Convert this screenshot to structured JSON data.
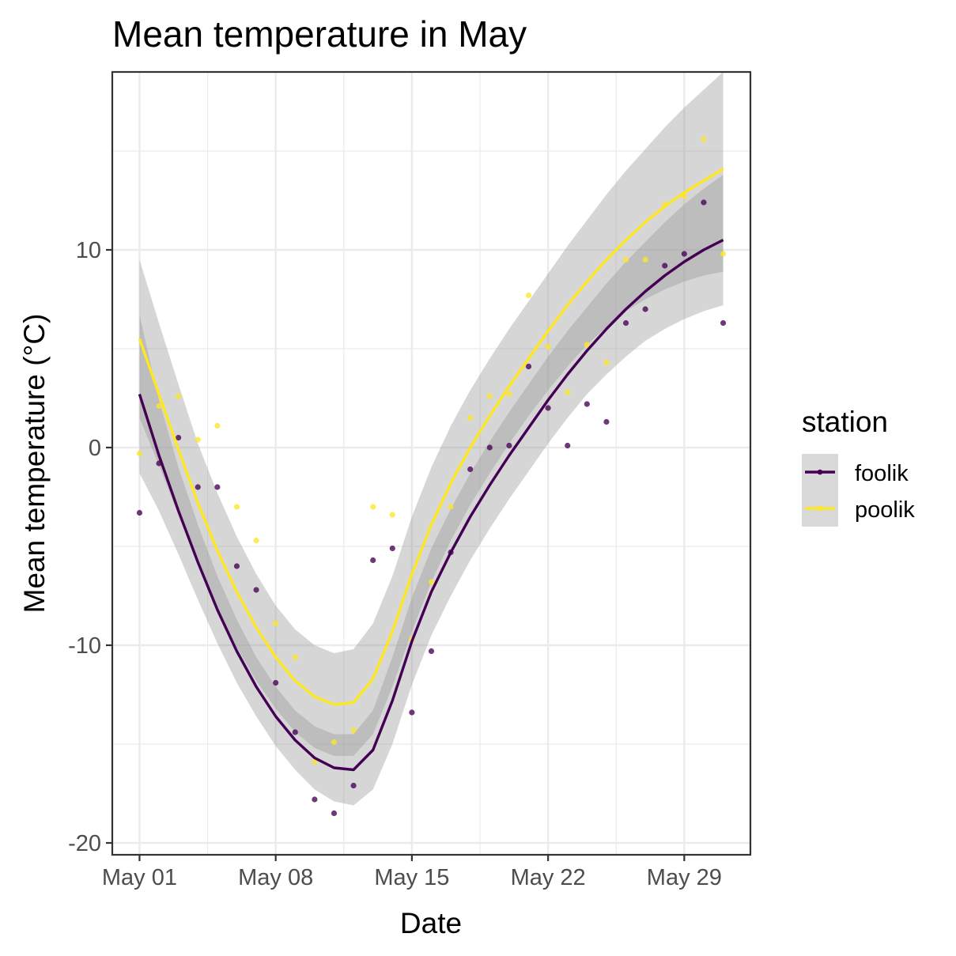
{
  "chart_data": {
    "type": "scatter",
    "title": "Mean temperature in May",
    "xlabel": "Date",
    "ylabel": "Mean temperature (°C)",
    "x_ticks": [
      "May 01",
      "May 08",
      "May 15",
      "May 22",
      "May 29"
    ],
    "x_tick_days": [
      1,
      8,
      15,
      22,
      29
    ],
    "x_range_days": [
      -0.4,
      32.4
    ],
    "ylim": [
      -20.6,
      19.0
    ],
    "y_ticks": [
      -20,
      -10,
      0,
      10
    ],
    "y_tick_labels": [
      "-20",
      "-10",
      "0",
      "10"
    ],
    "grid": true,
    "smoother": "loess with confidence band",
    "legend": {
      "title": "station",
      "position": "right"
    },
    "series": [
      {
        "name": "foolik",
        "color": "#440154",
        "x_days": [
          1,
          2,
          3,
          4,
          5,
          6,
          7,
          8,
          9,
          10,
          11,
          12,
          13,
          14,
          15,
          16,
          17,
          18,
          19,
          20,
          21,
          22,
          23,
          24,
          25,
          26,
          27,
          28,
          29,
          30,
          31
        ],
        "values": [
          -3.3,
          -0.8,
          0.5,
          -2.0,
          -2.0,
          -6.0,
          -7.2,
          -11.9,
          -14.4,
          -17.8,
          -18.5,
          -17.1,
          -5.7,
          -5.1,
          -13.4,
          -10.3,
          -5.3,
          -1.1,
          0.0,
          0.1,
          4.1,
          2.0,
          0.1,
          2.2,
          1.3,
          6.3,
          7.0,
          9.2,
          9.8,
          12.4,
          6.3
        ],
        "smooth_x_days": [
          1,
          2,
          3,
          4,
          5,
          6,
          7,
          8,
          9,
          10,
          11,
          12,
          13,
          14,
          15,
          16,
          17,
          18,
          19,
          20,
          21,
          22,
          23,
          24,
          25,
          26,
          27,
          28,
          29,
          30,
          31
        ],
        "smooth_y": [
          2.7,
          -0.4,
          -3.2,
          -5.8,
          -8.2,
          -10.3,
          -12.1,
          -13.6,
          -14.8,
          -15.7,
          -16.2,
          -16.3,
          -15.3,
          -12.8,
          -9.8,
          -7.3,
          -5.3,
          -3.5,
          -1.9,
          -0.4,
          1.0,
          2.4,
          3.7,
          4.9,
          6.0,
          7.0,
          7.9,
          8.7,
          9.4,
          10.0,
          10.5
        ],
        "band_lower": [
          -1.3,
          -3.2,
          -5.4,
          -7.7,
          -9.9,
          -11.9,
          -13.6,
          -15.1,
          -16.3,
          -17.3,
          -17.9,
          -18.1,
          -17.3,
          -15.0,
          -12.0,
          -9.5,
          -7.5,
          -5.7,
          -4.1,
          -2.6,
          -1.2,
          0.2,
          1.5,
          2.7,
          3.7,
          4.6,
          5.4,
          6.0,
          6.5,
          6.9,
          7.2
        ],
        "band_upper": [
          6.7,
          2.4,
          -1.0,
          -3.9,
          -6.5,
          -8.7,
          -10.6,
          -12.1,
          -13.3,
          -14.1,
          -14.5,
          -14.5,
          -13.3,
          -10.6,
          -7.6,
          -5.1,
          -3.1,
          -1.3,
          0.3,
          1.8,
          3.2,
          4.6,
          5.9,
          7.1,
          8.3,
          9.4,
          10.4,
          11.4,
          12.3,
          13.1,
          13.8
        ]
      },
      {
        "name": "poolik",
        "color": "#FDE725",
        "x_days": [
          1,
          2,
          3,
          4,
          5,
          6,
          7,
          8,
          9,
          10,
          11,
          12,
          13,
          14,
          15,
          16,
          17,
          18,
          19,
          20,
          21,
          22,
          23,
          24,
          25,
          26,
          27,
          28,
          29,
          30,
          31
        ],
        "values": [
          -0.3,
          2.1,
          2.6,
          0.4,
          1.1,
          -3.0,
          -4.7,
          -8.9,
          -10.6,
          -15.9,
          -14.9,
          -14.3,
          -3.0,
          -3.4,
          -9.7,
          -6.8,
          -3.0,
          1.5,
          2.6,
          2.7,
          7.7,
          5.1,
          2.8,
          5.2,
          4.3,
          9.5,
          9.5,
          12.3,
          12.7,
          15.6,
          9.8
        ],
        "smooth_x_days": [
          1,
          2,
          3,
          4,
          5,
          6,
          7,
          8,
          9,
          10,
          11,
          12,
          13,
          14,
          15,
          16,
          17,
          18,
          19,
          20,
          21,
          22,
          23,
          24,
          25,
          26,
          27,
          28,
          29,
          30,
          31
        ],
        "smooth_y": [
          5.5,
          2.7,
          -0.1,
          -2.8,
          -5.2,
          -7.3,
          -9.1,
          -10.6,
          -11.8,
          -12.6,
          -13.0,
          -12.9,
          -11.7,
          -9.3,
          -6.4,
          -3.9,
          -1.8,
          0.0,
          1.6,
          3.1,
          4.5,
          5.9,
          7.2,
          8.4,
          9.5,
          10.5,
          11.4,
          12.2,
          12.9,
          13.5,
          14.1
        ],
        "band_lower": [
          1.5,
          -0.9,
          -3.4,
          -5.8,
          -8.1,
          -10.1,
          -11.8,
          -13.2,
          -14.4,
          -15.2,
          -15.6,
          -15.6,
          -14.5,
          -12.1,
          -9.3,
          -6.8,
          -4.7,
          -2.9,
          -1.3,
          0.2,
          1.6,
          2.9,
          4.1,
          5.2,
          6.1,
          6.9,
          7.5,
          8.0,
          8.4,
          8.7,
          8.9
        ],
        "band_upper": [
          9.5,
          6.3,
          3.2,
          0.2,
          -2.3,
          -4.5,
          -6.4,
          -8.0,
          -9.2,
          -10.0,
          -10.4,
          -10.2,
          -8.9,
          -6.5,
          -3.5,
          -1.0,
          1.1,
          2.9,
          4.5,
          6.0,
          7.4,
          8.8,
          10.2,
          11.5,
          12.8,
          14.0,
          15.1,
          16.2,
          17.2,
          18.1,
          19.0
        ]
      }
    ]
  }
}
